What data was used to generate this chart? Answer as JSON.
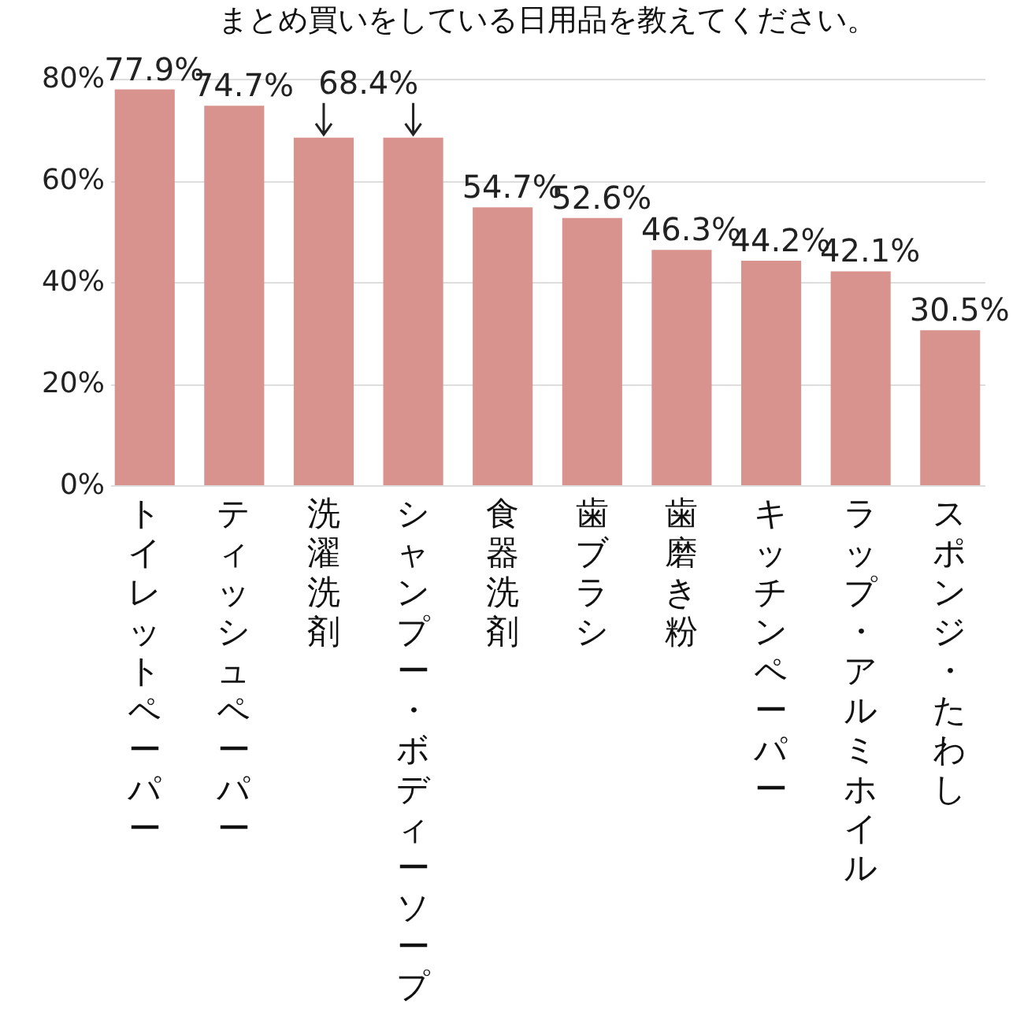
{
  "chart_data": {
    "type": "bar",
    "title": "まとめ買いをしている日用品を教えてください。",
    "categories": [
      "トイレットペーパー",
      "ティッシュペーパー",
      "洗濯洗剤",
      "シャンプー・ボディーソープ",
      "食器洗剤",
      "歯ブラシ",
      "歯磨き粉",
      "キッチンペーパー",
      "ラップ・アルミホイル",
      "スポンジ・たわし"
    ],
    "values": [
      77.9,
      74.7,
      68.4,
      68.4,
      54.7,
      52.6,
      46.3,
      44.2,
      42.1,
      30.5
    ],
    "value_labels": [
      "77.9%",
      "74.7%",
      "68.4%",
      null,
      "54.7%",
      "52.6%",
      "46.3%",
      "44.2%",
      "42.1%",
      "30.5%"
    ],
    "color": "#d8938e",
    "ylim": [
      0,
      80
    ],
    "yticks": [
      {
        "value": 0,
        "label": "0%"
      },
      {
        "value": 20,
        "label": "20%"
      },
      {
        "value": 40,
        "label": "40%"
      },
      {
        "value": 60,
        "label": "60%"
      },
      {
        "value": 80,
        "label": "80%"
      }
    ],
    "grid": "y"
  }
}
